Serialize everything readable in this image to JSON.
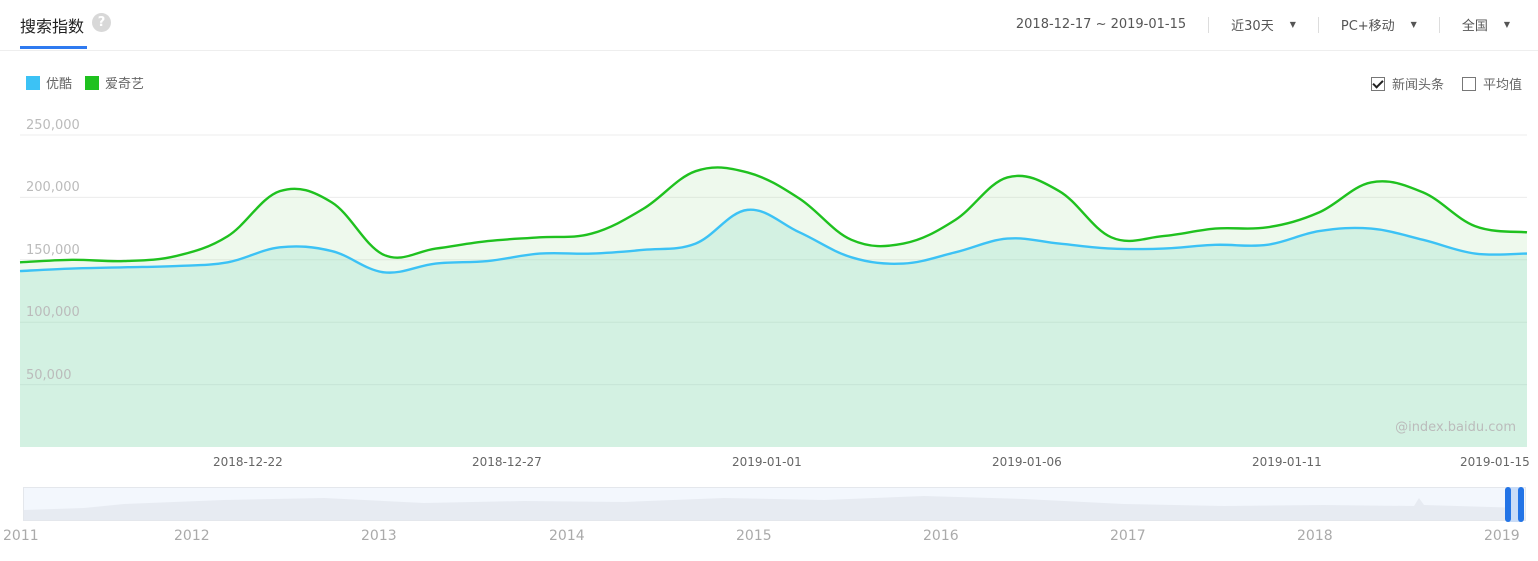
{
  "header": {
    "title": "搜索指数",
    "help_icon": "?",
    "date_range": "2018-12-17 ~ 2019-01-15",
    "period": "近30天",
    "device": "PC+移动",
    "region": "全国"
  },
  "legend": [
    {
      "label": "优酷",
      "color": "#3cc2f5"
    },
    {
      "label": "爱奇艺",
      "color": "#1fc11f"
    }
  ],
  "options": {
    "news": "新闻头条",
    "news_checked": true,
    "average": "平均值",
    "average_checked": false
  },
  "watermark": "@index.baidu.com",
  "navigator": {
    "years": [
      "2011",
      "2012",
      "2013",
      "2014",
      "2015",
      "2016",
      "2017",
      "2018",
      "2019"
    ]
  },
  "chart_data": {
    "type": "area",
    "title": "搜索指数",
    "xlabel": "",
    "ylabel": "",
    "ylim": [
      0,
      250000
    ],
    "yticks": [
      "50,000",
      "100,000",
      "150,000",
      "200,000",
      "250,000"
    ],
    "grid": true,
    "legend_position": "top-left",
    "xtick_labels": [
      "2018-12-22",
      "2018-12-27",
      "2019-01-01",
      "2019-01-06",
      "2019-01-11",
      "2019-01-15"
    ],
    "x": [
      "2018-12-17",
      "2018-12-18",
      "2018-12-19",
      "2018-12-20",
      "2018-12-21",
      "2018-12-22",
      "2018-12-23",
      "2018-12-24",
      "2018-12-25",
      "2018-12-26",
      "2018-12-27",
      "2018-12-28",
      "2018-12-29",
      "2018-12-30",
      "2018-12-31",
      "2019-01-01",
      "2019-01-02",
      "2019-01-03",
      "2019-01-04",
      "2019-01-05",
      "2019-01-06",
      "2019-01-07",
      "2019-01-08",
      "2019-01-09",
      "2019-01-10",
      "2019-01-11",
      "2019-01-12",
      "2019-01-13",
      "2019-01-14",
      "2019-01-15"
    ],
    "series": [
      {
        "name": "优酷",
        "color": "#3cc2f5",
        "values": [
          141000,
          143000,
          144000,
          145000,
          148000,
          160000,
          157000,
          140000,
          147000,
          149000,
          155000,
          155000,
          158000,
          163000,
          190000,
          172000,
          152000,
          147000,
          156000,
          167000,
          163000,
          159000,
          159000,
          162000,
          162000,
          173000,
          175000,
          166000,
          155000,
          155000
        ]
      },
      {
        "name": "爱奇艺",
        "color": "#1fc11f",
        "values": [
          148000,
          150000,
          149000,
          153000,
          169000,
          205000,
          196000,
          154000,
          159000,
          165000,
          168000,
          171000,
          191000,
          221000,
          220000,
          199000,
          166000,
          163000,
          182000,
          216000,
          205000,
          168000,
          169000,
          175000,
          176000,
          188000,
          212000,
          204000,
          177000,
          172000
        ]
      }
    ]
  }
}
